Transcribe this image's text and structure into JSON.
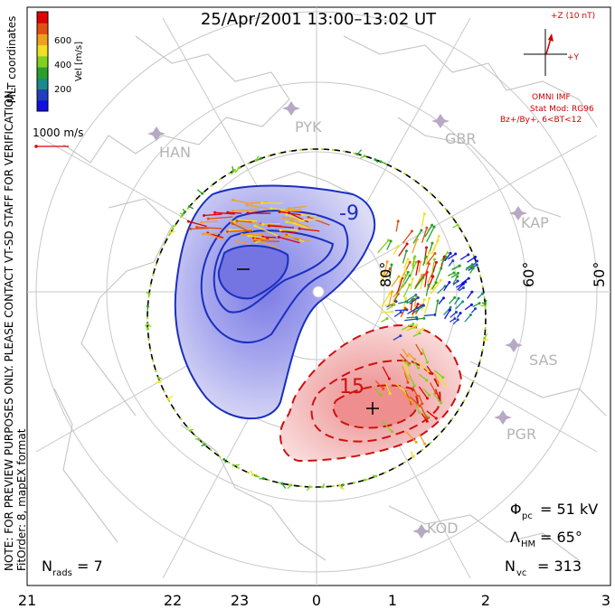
{
  "title": "25/Apr/2001 13:00–13:02 UT",
  "colorbar": {
    "label": "Vel [m/s]",
    "ticks": [
      "600",
      "400",
      "200"
    ],
    "colors": [
      "#1010e0",
      "#2040c0",
      "#1a8a8a",
      "#2aa02a",
      "#80d020",
      "#f0e020",
      "#f0a020",
      "#e05010",
      "#e00000"
    ]
  },
  "coords_label": "MLT coordinates",
  "velocity_scale": "1000 m/s",
  "imf": {
    "z_label": "+Z (10 nT)",
    "y_label": "+Y",
    "source": "OMNI IMF",
    "model": "Stat Mod: RG96",
    "condition": "Bz+/By+, 6<BT<12"
  },
  "side_note": "NOTE: FOR PREVIEW PURPOSES ONLY. PLEASE CONTACT VT-SD STAFF FOR VERIFICATION.",
  "fit_note": "FitOrder: 8, mapEX format",
  "stats": {
    "phi_pc": "= 51 kV",
    "lambda_hm": "= 65°",
    "n_vc": "= 313",
    "n_rads": "= 7"
  },
  "latitude_labels": [
    "80°",
    "60°",
    "50°"
  ],
  "stations": [
    "HAN",
    "PYK",
    "GBR",
    "KAP",
    "SAS",
    "PGR",
    "KOD"
  ],
  "mlt_ticks": [
    "21",
    "22",
    "23",
    "0",
    "1",
    "2",
    "3"
  ],
  "potential_labels": [
    "-9",
    "15"
  ],
  "chart_data": {
    "type": "map",
    "title": "25/Apr/2001 13:00–13:02 UT",
    "xlabel": "MLT",
    "x_ticks": [
      "21",
      "22",
      "23",
      "0",
      "1",
      "2",
      "3"
    ],
    "cross_polar_cap_potential_kV": 51,
    "heppner_maynard_boundary_deg": 65,
    "n_vectors": 313,
    "n_radars": 7,
    "potential_min_label_kV": -9,
    "potential_max_label_kV": 15
  }
}
